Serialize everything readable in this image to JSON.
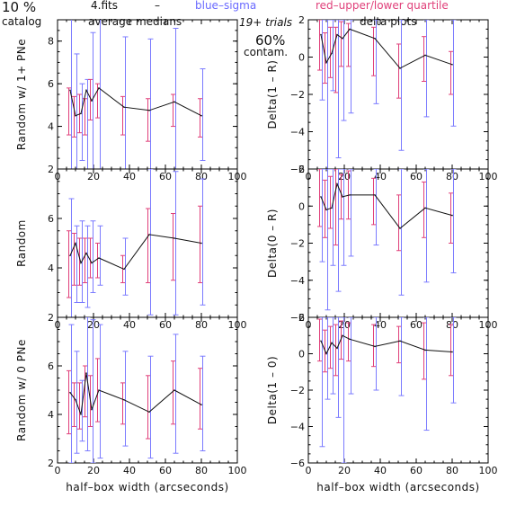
{
  "header": {
    "pct_top": "10 %",
    "catalog": "catalog",
    "fits": "4.fits",
    "dash": "–",
    "averages": "average medians",
    "blue": "blue–sigma",
    "red": "red–upper/lower quartile",
    "trials": "19+ trials",
    "delta": "delta plots",
    "contam_pct": "60%",
    "contam": "contam."
  },
  "colors": {
    "median": "#111111",
    "sigma": "#7b7bff",
    "quartile": "#e0407a",
    "frame": "#000000"
  },
  "x_axis_label": "half–box width (arcseconds)",
  "chart_data": [
    {
      "type": "line",
      "id": "L1",
      "ylabel": "Random w/ 1+ PNe",
      "xlim": [
        0,
        100
      ],
      "ylim": [
        2,
        9
      ],
      "xticks": [
        "0",
        "20",
        "40",
        "60",
        "80",
        "100"
      ],
      "yticks": [
        "2",
        "4",
        "6",
        "8"
      ],
      "x": [
        7,
        10,
        13,
        16,
        19,
        23,
        37,
        51,
        65,
        80
      ],
      "y": [
        5.7,
        4.5,
        4.6,
        5.7,
        5.2,
        5.8,
        4.9,
        4.75,
        5.15,
        4.5
      ],
      "sigma_low": [
        1.2,
        1.8,
        2.4,
        1.5,
        2.0,
        2.0,
        1.6,
        1.6,
        1.8,
        2.4
      ],
      "sigma_high": [
        9.2,
        7.4,
        6.0,
        6.2,
        8.4,
        9.1,
        8.2,
        8.1,
        8.6,
        6.7
      ],
      "q_low": [
        3.6,
        3.5,
        3.7,
        3.6,
        4.3,
        4.4,
        3.6,
        3.3,
        4.0,
        3.5
      ],
      "q_high": [
        5.8,
        5.4,
        5.5,
        5.3,
        6.2,
        6.0,
        5.4,
        5.3,
        5.5,
        5.3
      ]
    },
    {
      "type": "line",
      "id": "R1",
      "ylabel": "Delta(1 – R)",
      "xlim": [
        0,
        100
      ],
      "ylim": [
        -6,
        2
      ],
      "xticks": [
        "0",
        "20",
        "40",
        "60",
        "80",
        "100"
      ],
      "yticks": [
        "−6",
        "−4",
        "−2",
        "0",
        "2"
      ],
      "x": [
        7,
        10,
        13,
        16,
        19,
        23,
        37,
        51,
        65,
        80
      ],
      "y": [
        1.2,
        -0.3,
        0.2,
        1.2,
        1.0,
        1.5,
        1.0,
        -0.6,
        0.1,
        -0.4
      ],
      "sigma_low": [
        -2.3,
        -6.0,
        -1.8,
        -5.4,
        -3.4,
        -3.0,
        -2.5,
        -5.0,
        -3.2,
        -3.7
      ],
      "sigma_high": [
        2.0,
        2.0,
        2.0,
        2.0,
        2.0,
        2.0,
        2.0,
        2.0,
        2.0,
        2.0
      ],
      "q_low": [
        -0.7,
        -1.4,
        -1.1,
        -1.9,
        -0.5,
        -0.5,
        -1.0,
        -2.2,
        -1.3,
        -2.0
      ],
      "q_high": [
        2.0,
        1.3,
        1.6,
        1.6,
        1.9,
        1.8,
        1.6,
        0.7,
        1.1,
        0.3
      ]
    },
    {
      "type": "line",
      "id": "L2",
      "ylabel": "Random",
      "xlim": [
        0,
        100
      ],
      "ylim": [
        2,
        8
      ],
      "xticks": [
        "0",
        "20",
        "40",
        "60",
        "80",
        "100"
      ],
      "yticks": [
        "2",
        "4",
        "6"
      ],
      "x": [
        7,
        10,
        13,
        16,
        19,
        23,
        37,
        51,
        65,
        80
      ],
      "y": [
        4.5,
        5.0,
        4.2,
        4.6,
        4.2,
        4.4,
        3.95,
        5.35,
        5.2,
        5.0
      ],
      "sigma_low": [
        1.8,
        2.6,
        2.6,
        2.4,
        3.0,
        3.3,
        2.9,
        2.1,
        2.1,
        2.5
      ],
      "sigma_high": [
        6.8,
        5.7,
        5.9,
        5.7,
        5.9,
        5.7,
        5.2,
        8.0,
        7.9,
        7.6
      ],
      "q_low": [
        2.8,
        3.3,
        3.3,
        3.4,
        3.6,
        3.6,
        3.4,
        3.4,
        3.5,
        3.4
      ],
      "q_high": [
        5.5,
        5.4,
        5.2,
        5.2,
        5.2,
        5.0,
        4.5,
        6.4,
        6.2,
        6.5
      ]
    },
    {
      "type": "line",
      "id": "R2",
      "ylabel": "Delta(0 – R)",
      "xlim": [
        0,
        100
      ],
      "ylim": [
        -6,
        2
      ],
      "xticks": [
        "0",
        "20",
        "40",
        "60",
        "80",
        "100"
      ],
      "yticks": [
        "−6",
        "−4",
        "−2",
        "0",
        "2"
      ],
      "x": [
        7,
        10,
        13,
        16,
        19,
        23,
        37,
        51,
        65,
        80
      ],
      "y": [
        0.5,
        -0.2,
        -0.1,
        1.2,
        0.5,
        0.6,
        0.6,
        -1.2,
        -0.1,
        -0.5
      ],
      "sigma_low": [
        -3.0,
        -5.6,
        -3.2,
        -4.6,
        -3.2,
        -2.7,
        -2.1,
        -4.8,
        -4.1,
        -3.6
      ],
      "sigma_high": [
        2.0,
        2.0,
        2.0,
        2.0,
        2.0,
        2.0,
        2.0,
        2.0,
        2.0,
        2.0
      ],
      "q_low": [
        -1.1,
        -1.7,
        -1.2,
        -2.1,
        -0.7,
        -0.7,
        -1.0,
        -2.4,
        -1.7,
        -2.0
      ],
      "q_high": [
        2.0,
        1.4,
        1.6,
        2.0,
        1.7,
        1.9,
        1.5,
        0.6,
        1.3,
        0.7
      ]
    },
    {
      "type": "line",
      "id": "L3",
      "ylabel": "Random w/ 0 PNe",
      "xlim": [
        0,
        100
      ],
      "ylim": [
        2,
        8
      ],
      "xticks": [
        "0",
        "20",
        "40",
        "60",
        "80",
        "100"
      ],
      "yticks": [
        "2",
        "4",
        "6"
      ],
      "x": [
        7,
        10,
        13,
        16,
        19,
        23,
        37,
        51,
        65,
        80
      ],
      "y": [
        4.9,
        4.6,
        4.0,
        5.7,
        4.2,
        5.0,
        4.6,
        4.1,
        5.0,
        4.4
      ],
      "sigma_low": [
        2.0,
        2.4,
        2.9,
        2.5,
        2.0,
        2.2,
        2.7,
        2.2,
        2.4,
        2.5
      ],
      "sigma_high": [
        7.7,
        6.6,
        5.4,
        8.0,
        7.9,
        7.7,
        6.6,
        6.4,
        7.3,
        6.4
      ],
      "q_low": [
        3.2,
        3.5,
        3.4,
        3.9,
        3.5,
        3.7,
        3.6,
        3.0,
        3.6,
        3.4
      ],
      "q_high": [
        5.8,
        5.3,
        5.3,
        6.0,
        5.6,
        6.3,
        5.3,
        5.6,
        6.2,
        5.9
      ]
    },
    {
      "type": "line",
      "id": "R3",
      "ylabel": "Delta(1 – 0)",
      "xlim": [
        0,
        100
      ],
      "ylim": [
        -6,
        2
      ],
      "xticks": [
        "0",
        "20",
        "40",
        "60",
        "80",
        "100"
      ],
      "yticks": [
        "−6",
        "−4",
        "−2",
        "0",
        "2"
      ],
      "x": [
        7,
        10,
        13,
        16,
        19,
        23,
        37,
        51,
        65,
        80
      ],
      "y": [
        0.7,
        0.0,
        0.6,
        0.3,
        1.0,
        0.8,
        0.4,
        0.7,
        0.2,
        0.1
      ],
      "sigma_low": [
        -5.1,
        -2.5,
        -2.2,
        -3.5,
        -6.0,
        -2.2,
        -2.0,
        -2.3,
        -4.2,
        -2.7
      ],
      "sigma_high": [
        2.0,
        2.0,
        2.0,
        2.0,
        2.0,
        2.0,
        2.0,
        2.0,
        2.0,
        2.0
      ],
      "q_low": [
        -0.4,
        -1.0,
        -0.8,
        -1.2,
        -0.3,
        -0.4,
        -0.7,
        -0.5,
        -1.4,
        -1.2
      ],
      "q_high": [
        1.9,
        1.3,
        1.5,
        1.6,
        1.8,
        1.7,
        1.6,
        1.5,
        1.7,
        1.6
      ]
    }
  ]
}
